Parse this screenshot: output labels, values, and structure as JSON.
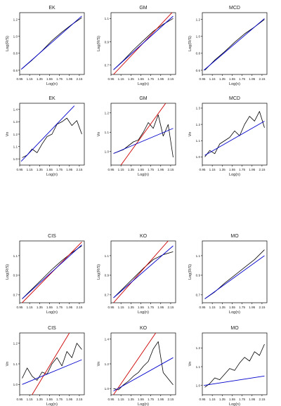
{
  "chart_data": [
    {
      "type": "line",
      "title": "EK",
      "xlabel": "Log(n)",
      "ylabel": "Log(R/S)",
      "xlim": [
        0.95,
        2.25
      ],
      "ylim": [
        0.55,
        1.28
      ],
      "xticks": [
        "0.95",
        "1.15",
        "1.35",
        "1.55",
        "1.75",
        "1.95",
        "2.15"
      ],
      "yticks": [
        "0.6",
        "0.8",
        "1.0",
        "1.2"
      ],
      "series": [
        {
          "color": "#000000",
          "x": [
            1.0,
            1.2,
            1.4,
            1.6,
            1.8,
            2.0,
            2.2
          ],
          "y": [
            0.62,
            0.72,
            0.83,
            0.95,
            1.05,
            1.14,
            1.22
          ]
        },
        {
          "color": "#0000cc",
          "x": [
            0.98,
            2.2
          ],
          "y": [
            0.61,
            1.24
          ]
        }
      ]
    },
    {
      "type": "line",
      "title": "GM",
      "xlabel": "Log(n)",
      "ylabel": "Log(R/S)",
      "xlim": [
        0.95,
        2.25
      ],
      "ylim": [
        0.62,
        1.15
      ],
      "xticks": [
        "0.95",
        "1.15",
        "1.35",
        "1.55",
        "1.75",
        "1.95",
        "2.15"
      ],
      "yticks": [
        "0.7",
        "0.9",
        "1.1"
      ],
      "series": [
        {
          "color": "#000000",
          "x": [
            1.0,
            1.2,
            1.4,
            1.6,
            1.8,
            2.0,
            2.2
          ],
          "y": [
            0.66,
            0.74,
            0.83,
            0.91,
            0.99,
            1.05,
            1.1
          ]
        },
        {
          "color": "#cc0000",
          "x": [
            1.0,
            2.2
          ],
          "y": [
            0.62,
            1.16
          ]
        },
        {
          "color": "#0000cc",
          "x": [
            1.0,
            2.2
          ],
          "y": [
            0.66,
            1.12
          ]
        }
      ]
    },
    {
      "type": "line",
      "title": "MCD",
      "xlabel": "Log(n)",
      "ylabel": "Log(R/S)",
      "xlim": [
        0.95,
        2.25
      ],
      "ylim": [
        0.55,
        1.28
      ],
      "xticks": [
        "0.95",
        "1.15",
        "1.35",
        "1.55",
        "1.75",
        "1.95",
        "2.15"
      ],
      "yticks": [
        "0.6",
        "0.8",
        "1.0",
        "1.2"
      ],
      "series": [
        {
          "color": "#000000",
          "x": [
            1.0,
            1.2,
            1.4,
            1.6,
            1.8,
            2.0,
            2.2
          ],
          "y": [
            0.6,
            0.72,
            0.82,
            0.93,
            1.03,
            1.11,
            1.2
          ]
        },
        {
          "color": "#0000cc",
          "x": [
            0.98,
            2.2
          ],
          "y": [
            0.6,
            1.21
          ]
        }
      ]
    },
    {
      "type": "line",
      "title": "EK",
      "xlabel": "Log(n)",
      "ylabel": "Vn",
      "xlim": [
        0.95,
        2.25
      ],
      "ylim": [
        0.95,
        1.45
      ],
      "xticks": [
        "0.95",
        "1.15",
        "1.35",
        "1.55",
        "1.75",
        "1.95",
        "2.15"
      ],
      "yticks": [
        "1.0",
        "1.1",
        "1.2",
        "1.3",
        "1.4"
      ],
      "series": [
        {
          "color": "#000000",
          "x": [
            1.0,
            1.1,
            1.2,
            1.3,
            1.4,
            1.5,
            1.6,
            1.7,
            1.8,
            1.9,
            2.0,
            2.1,
            2.2
          ],
          "y": [
            1.01,
            1.03,
            1.08,
            1.05,
            1.12,
            1.18,
            1.2,
            1.28,
            1.3,
            1.33,
            1.27,
            1.31,
            1.2
          ]
        },
        {
          "color": "#0000cc",
          "x": [
            0.98,
            2.05
          ],
          "y": [
            0.98,
            1.43
          ]
        }
      ]
    },
    {
      "type": "line",
      "title": "GM",
      "xlabel": "Log(n)",
      "ylabel": "Vn",
      "xlim": [
        0.95,
        2.25
      ],
      "ylim": [
        0.93,
        1.25
      ],
      "xticks": [
        "0.95",
        "1.15",
        "1.35",
        "1.55",
        "1.75",
        "1.95",
        "2.15"
      ],
      "yticks": [
        "0.9",
        "1.0",
        "1.1",
        "1.2"
      ],
      "series": [
        {
          "color": "#000000",
          "x": [
            1.0,
            1.1,
            1.2,
            1.3,
            1.4,
            1.5,
            1.6,
            1.7,
            1.8,
            1.9,
            2.0,
            2.1,
            2.2
          ],
          "y": [
            0.99,
            1.0,
            1.01,
            1.03,
            1.05,
            1.06,
            1.1,
            1.15,
            1.12,
            1.19,
            1.08,
            1.14,
            0.97
          ]
        },
        {
          "color": "#cc0000",
          "x": [
            1.15,
            2.05
          ],
          "y": [
            0.93,
            1.25
          ]
        },
        {
          "color": "#0000cc",
          "x": [
            1.0,
            2.2
          ],
          "y": [
            0.99,
            1.12
          ]
        }
      ]
    },
    {
      "type": "line",
      "title": "MCD",
      "xlabel": "Log(n)",
      "ylabel": "Vn",
      "xlim": [
        0.95,
        2.25
      ],
      "ylim": [
        0.95,
        1.33
      ],
      "xticks": [
        "0.95",
        "1.15",
        "1.35",
        "1.55",
        "1.75",
        "1.95",
        "2.15"
      ],
      "yticks": [
        "1.0",
        "1.1",
        "1.2",
        "1.3"
      ],
      "series": [
        {
          "color": "#000000",
          "x": [
            1.0,
            1.1,
            1.2,
            1.3,
            1.4,
            1.5,
            1.6,
            1.7,
            1.8,
            1.9,
            2.0,
            2.1,
            2.2
          ],
          "y": [
            1.0,
            1.04,
            1.02,
            1.08,
            1.1,
            1.12,
            1.16,
            1.13,
            1.2,
            1.25,
            1.22,
            1.28,
            1.18
          ]
        },
        {
          "color": "#0000cc",
          "x": [
            1.0,
            2.2
          ],
          "y": [
            1.01,
            1.22
          ]
        }
      ]
    },
    {
      "type": "line",
      "title": "CIS",
      "xlabel": "Log(n)",
      "ylabel": "Log(R/S)",
      "xlim": [
        0.95,
        2.25
      ],
      "ylim": [
        0.62,
        1.25
      ],
      "xticks": [
        "0.95",
        "1.15",
        "1.35",
        "1.55",
        "1.75",
        "1.95",
        "2.15"
      ],
      "yticks": [
        "0.7",
        "0.9",
        "1.1"
      ],
      "series": [
        {
          "color": "#000000",
          "x": [
            1.0,
            1.2,
            1.4,
            1.6,
            1.8,
            2.0,
            2.2
          ],
          "y": [
            0.66,
            0.76,
            0.86,
            0.96,
            1.05,
            1.13,
            1.2
          ]
        },
        {
          "color": "#cc0000",
          "x": [
            1.0,
            2.2
          ],
          "y": [
            0.62,
            1.24
          ]
        },
        {
          "color": "#0000cc",
          "x": [
            1.0,
            2.2
          ],
          "y": [
            0.66,
            1.21
          ]
        }
      ]
    },
    {
      "type": "line",
      "title": "KO",
      "xlabel": "Log(n)",
      "ylabel": "Log(R/S)",
      "xlim": [
        0.95,
        2.25
      ],
      "ylim": [
        0.62,
        1.25
      ],
      "xticks": [
        "0.95",
        "1.15",
        "1.35",
        "1.55",
        "1.75",
        "1.95",
        "2.15"
      ],
      "yticks": [
        "0.7",
        "0.9",
        "1.1"
      ],
      "series": [
        {
          "color": "#000000",
          "x": [
            1.0,
            1.2,
            1.4,
            1.6,
            1.8,
            2.0,
            2.2
          ],
          "y": [
            0.67,
            0.77,
            0.87,
            0.97,
            1.06,
            1.11,
            1.14
          ]
        },
        {
          "color": "#cc0000",
          "x": [
            1.0,
            2.1
          ],
          "y": [
            0.62,
            1.25
          ]
        },
        {
          "color": "#0000cc",
          "x": [
            1.0,
            2.2
          ],
          "y": [
            0.67,
            1.2
          ]
        }
      ]
    },
    {
      "type": "line",
      "title": "MO",
      "xlabel": "Log(n)",
      "ylabel": "Log(R/S)",
      "xlim": [
        0.95,
        2.25
      ],
      "ylim": [
        0.62,
        1.25
      ],
      "xticks": [
        "0.95",
        "1.15",
        "1.35",
        "1.55",
        "1.75",
        "1.95",
        "2.15"
      ],
      "yticks": [
        "0.7",
        "0.9",
        "1.1"
      ],
      "series": [
        {
          "color": "#000000",
          "x": [
            1.0,
            1.2,
            1.4,
            1.6,
            1.8,
            2.0,
            2.2
          ],
          "y": [
            0.66,
            0.73,
            0.82,
            0.9,
            0.98,
            1.06,
            1.16
          ]
        },
        {
          "color": "#0000cc",
          "x": [
            1.0,
            2.2
          ],
          "y": [
            0.66,
            1.1
          ]
        }
      ]
    },
    {
      "type": "line",
      "title": "CIS",
      "xlabel": "Log(n)",
      "ylabel": "Vn",
      "xlim": [
        0.95,
        2.25
      ],
      "ylim": [
        0.95,
        1.25
      ],
      "xticks": [
        "0.95",
        "1.15",
        "1.35",
        "1.55",
        "1.75",
        "1.95",
        "2.15"
      ],
      "yticks": [
        "1.0",
        "1.1",
        "1.2"
      ],
      "series": [
        {
          "color": "#000000",
          "x": [
            1.0,
            1.1,
            1.2,
            1.3,
            1.4,
            1.5,
            1.6,
            1.7,
            1.8,
            1.9,
            2.0,
            2.1,
            2.2
          ],
          "y": [
            1.03,
            1.08,
            1.04,
            1.02,
            1.06,
            1.05,
            1.1,
            1.13,
            1.09,
            1.16,
            1.13,
            1.2,
            1.17
          ]
        },
        {
          "color": "#cc0000",
          "x": [
            1.2,
            1.95
          ],
          "y": [
            0.95,
            1.25
          ]
        },
        {
          "color": "#0000cc",
          "x": [
            1.0,
            2.2
          ],
          "y": [
            1.0,
            1.12
          ]
        }
      ]
    },
    {
      "type": "line",
      "title": "KO",
      "xlabel": "Log(n)",
      "ylabel": "Vn",
      "xlim": [
        0.95,
        2.25
      ],
      "ylim": [
        0.95,
        1.45
      ],
      "xticks": [
        "0.95",
        "1.15",
        "1.35",
        "1.55",
        "1.75",
        "1.95",
        "2.15"
      ],
      "yticks": [
        "1.0",
        "1.2",
        "1.4"
      ],
      "series": [
        {
          "color": "#000000",
          "x": [
            1.0,
            1.1,
            1.2,
            1.3,
            1.4,
            1.5,
            1.6,
            1.7,
            1.8,
            1.9,
            2.0,
            2.1,
            2.2
          ],
          "y": [
            1.0,
            0.99,
            1.03,
            1.06,
            1.1,
            1.13,
            1.18,
            1.22,
            1.32,
            1.38,
            1.13,
            1.08,
            1.03
          ]
        },
        {
          "color": "#cc0000",
          "x": [
            1.0,
            1.85
          ],
          "y": [
            0.95,
            1.45
          ]
        },
        {
          "color": "#0000cc",
          "x": [
            1.0,
            2.2
          ],
          "y": [
            0.98,
            1.25
          ]
        }
      ]
    },
    {
      "type": "line",
      "title": "MO",
      "xlabel": "Log(n)",
      "ylabel": "Vn",
      "xlim": [
        0.95,
        2.25
      ],
      "ylim": [
        0.95,
        1.28
      ],
      "xticks": [
        "0.95",
        "1.15",
        "1.35",
        "1.55",
        "1.75",
        "1.95",
        "2.15"
      ],
      "yticks": [
        "1.0",
        "1.1",
        "1.2"
      ],
      "series": [
        {
          "color": "#000000",
          "x": [
            1.0,
            1.1,
            1.2,
            1.3,
            1.4,
            1.5,
            1.6,
            1.7,
            1.8,
            1.9,
            2.0,
            2.1,
            2.2
          ],
          "y": [
            0.99,
            1.01,
            1.04,
            1.03,
            1.06,
            1.09,
            1.08,
            1.12,
            1.15,
            1.13,
            1.18,
            1.16,
            1.22
          ]
        },
        {
          "color": "#0000cc",
          "x": [
            0.98,
            2.2
          ],
          "y": [
            1.0,
            1.05
          ]
        }
      ]
    }
  ]
}
